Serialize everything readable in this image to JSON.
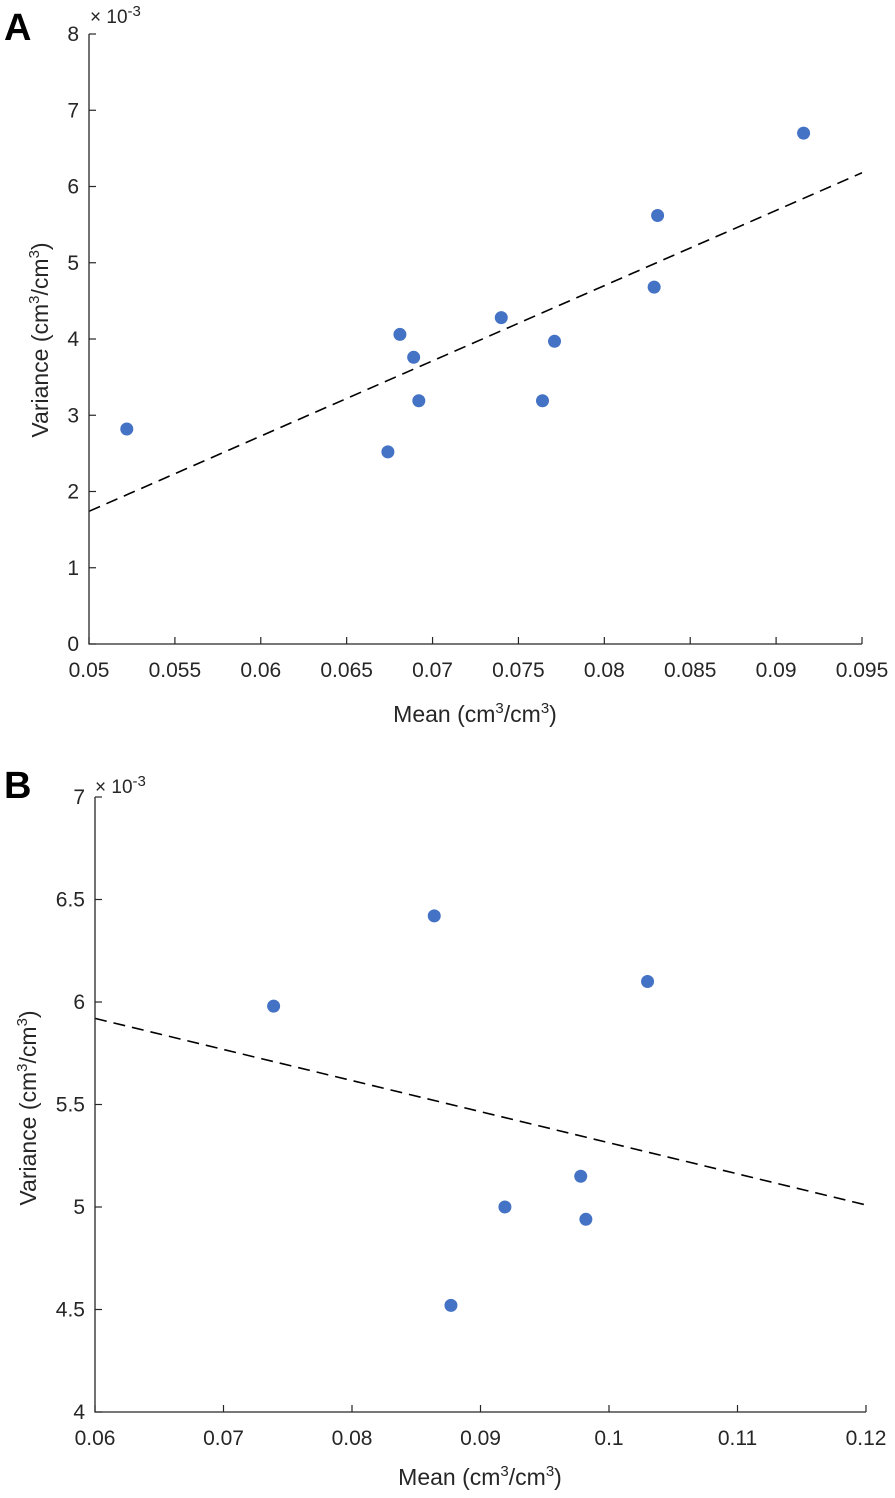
{
  "chart_data": [
    {
      "type": "scatter",
      "panel_label": "A",
      "xlabel_main": "Mean (cm",
      "xlabel_sup1": "3",
      "xlabel_mid": "/cm",
      "xlabel_sup2": "3",
      "xlabel_end": ")",
      "ylabel_main": "Variance (cm",
      "ylabel_sup1": "3",
      "ylabel_mid": "/cm",
      "ylabel_sup2": "3",
      "ylabel_end": ")",
      "y_exponent_prefix": "× 10",
      "y_exponent_power": "-3",
      "xlim": [
        0.05,
        0.095
      ],
      "ylim": [
        0,
        8
      ],
      "x_ticks": [
        "0.05",
        "0.055",
        "0.06",
        "0.065",
        "0.07",
        "0.075",
        "0.08",
        "0.085",
        "0.09",
        "0.095"
      ],
      "y_ticks": [
        "0",
        "1",
        "2",
        "3",
        "4",
        "5",
        "6",
        "7",
        "8"
      ],
      "grid": false,
      "marker_color": "#4472c4",
      "points": [
        {
          "x": 0.0522,
          "y": 2.82
        },
        {
          "x": 0.0674,
          "y": 2.52
        },
        {
          "x": 0.0681,
          "y": 4.06
        },
        {
          "x": 0.0689,
          "y": 3.76
        },
        {
          "x": 0.0692,
          "y": 3.19
        },
        {
          "x": 0.074,
          "y": 4.28
        },
        {
          "x": 0.0764,
          "y": 3.19
        },
        {
          "x": 0.0771,
          "y": 3.97
        },
        {
          "x": 0.0829,
          "y": 4.68
        },
        {
          "x": 0.0831,
          "y": 5.62
        },
        {
          "x": 0.0916,
          "y": 6.7
        }
      ],
      "fit_line": {
        "x": [
          0.05,
          0.095
        ],
        "y": [
          1.74,
          6.18
        ]
      }
    },
    {
      "type": "scatter",
      "panel_label": "B",
      "xlabel_main": "Mean (cm",
      "xlabel_sup1": "3",
      "xlabel_mid": "/cm",
      "xlabel_sup2": "3",
      "xlabel_end": ")",
      "ylabel_main": "Variance (cm",
      "ylabel_sup1": "3",
      "ylabel_mid": "/cm",
      "ylabel_sup2": "3",
      "ylabel_end": ")",
      "y_exponent_prefix": "× 10",
      "y_exponent_power": "-3",
      "xlim": [
        0.06,
        0.12
      ],
      "ylim": [
        4,
        7
      ],
      "x_ticks": [
        "0.06",
        "0.07",
        "0.08",
        "0.09",
        "0.1",
        "0.11",
        "0.12"
      ],
      "y_ticks": [
        "4",
        "4.5",
        "5",
        "5.5",
        "6",
        "6.5",
        "7"
      ],
      "grid": false,
      "marker_color": "#4472c4",
      "points": [
        {
          "x": 0.0739,
          "y": 5.98
        },
        {
          "x": 0.0864,
          "y": 6.42
        },
        {
          "x": 0.0877,
          "y": 4.52
        },
        {
          "x": 0.0919,
          "y": 5.0
        },
        {
          "x": 0.0978,
          "y": 5.15
        },
        {
          "x": 0.0982,
          "y": 4.94
        },
        {
          "x": 0.103,
          "y": 6.1
        }
      ],
      "fit_line": {
        "x": [
          0.06,
          0.12
        ],
        "y": [
          5.92,
          5.01
        ]
      }
    }
  ]
}
